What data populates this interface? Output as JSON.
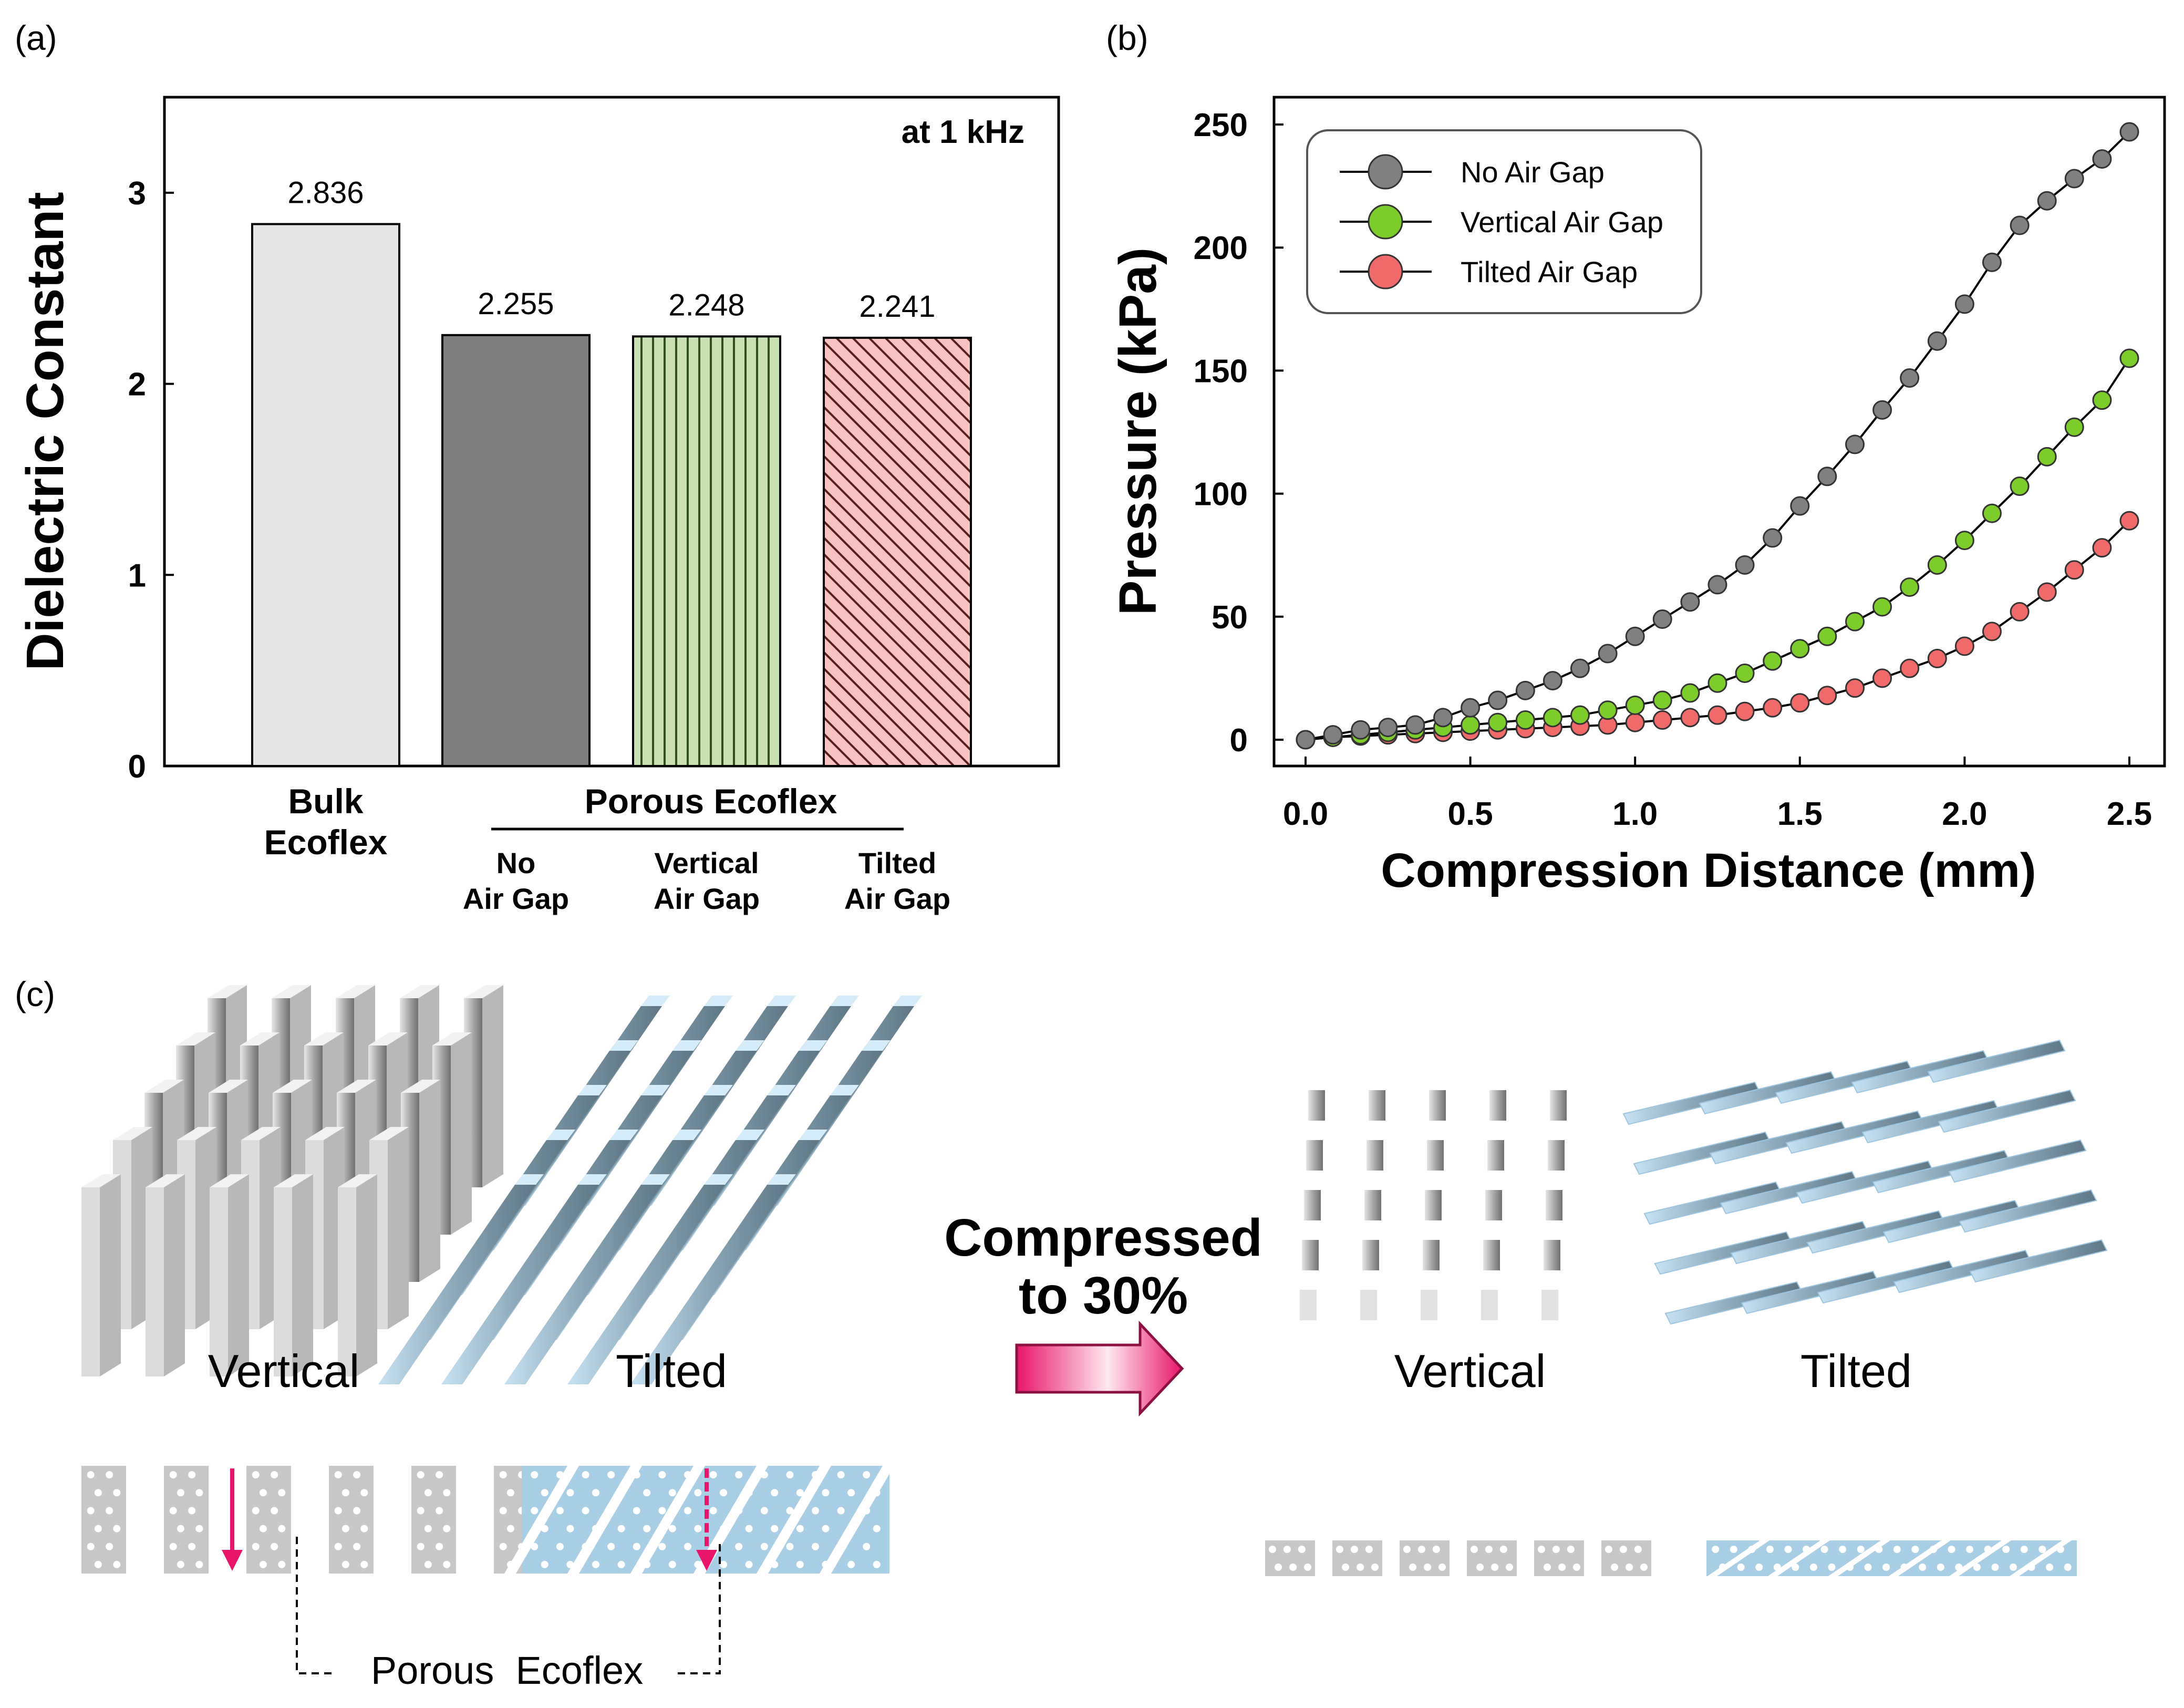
{
  "panels": {
    "a": "(a)",
    "b": "(b)",
    "c": "(c)"
  },
  "chart_data": [
    {
      "type": "bar",
      "ylabel": "Dielectric Constant",
      "annotation": "at 1 kHz",
      "ylim": [
        0,
        3.5
      ],
      "yticks": [
        0,
        1,
        2,
        3
      ],
      "categories": [
        "Bulk Ecoflex",
        "No Air Gap",
        "Vertical Air Gap",
        "Tilted Air Gap"
      ],
      "category_lines": [
        [
          "Bulk",
          "Ecoflex"
        ],
        [
          "No",
          "Air Gap"
        ],
        [
          "Vertical",
          "Air Gap"
        ],
        [
          "Tilted",
          "Air Gap"
        ]
      ],
      "group_label": "Porous Ecoflex",
      "values": [
        2.836,
        2.255,
        2.248,
        2.241
      ],
      "value_labels": [
        "2.836",
        "2.255",
        "2.248",
        "2.241"
      ],
      "colors": [
        "#e6e6e6",
        "#7f7f7f",
        "#c9e0b3",
        "#f6c2c2"
      ],
      "patterns": [
        "none",
        "none",
        "vertical",
        "diagonal"
      ]
    },
    {
      "type": "line",
      "xlabel": "Compression Distance (mm)",
      "ylabel": "Pressure (kPa)",
      "xlim": [
        0,
        2.5
      ],
      "ylim": [
        0,
        250
      ],
      "xticks": [
        "0.0",
        "0.5",
        "1.0",
        "1.5",
        "2.0",
        "2.5"
      ],
      "yticks": [
        "0",
        "50",
        "100",
        "150",
        "200",
        "250"
      ],
      "x": [
        0,
        0.083,
        0.167,
        0.25,
        0.333,
        0.417,
        0.5,
        0.583,
        0.667,
        0.75,
        0.833,
        0.917,
        1.0,
        1.083,
        1.167,
        1.25,
        1.333,
        1.417,
        1.5,
        1.583,
        1.667,
        1.75,
        1.833,
        1.917,
        2.0,
        2.083,
        2.167,
        2.25,
        2.333,
        2.417,
        2.5
      ],
      "series": [
        {
          "name": "No Air Gap",
          "color": "#808080",
          "values": [
            0,
            2,
            4,
            5,
            6,
            9,
            13,
            16,
            20,
            24,
            29,
            35,
            42,
            49,
            56,
            63,
            71,
            82,
            95,
            107,
            120,
            134,
            147,
            162,
            177,
            194,
            209,
            219,
            228,
            236,
            247
          ]
        },
        {
          "name": "Vertical Air Gap",
          "color": "#7ccc2c",
          "values": [
            0,
            1,
            2,
            3,
            4,
            5,
            6,
            7,
            8,
            9,
            10,
            12,
            14,
            16,
            19,
            23,
            27,
            32,
            37,
            42,
            48,
            54,
            62,
            71,
            81,
            92,
            103,
            115,
            127,
            138,
            155
          ]
        },
        {
          "name": "Tilted Air Gap",
          "color": "#f06a6a",
          "values": [
            0,
            1,
            1.5,
            2,
            2.5,
            3,
            3.5,
            4,
            4.5,
            5,
            5.5,
            6,
            7,
            8,
            9,
            10,
            11.5,
            13,
            15,
            18,
            21,
            25,
            29,
            33,
            38,
            44,
            52,
            60,
            69,
            78,
            89
          ]
        }
      ]
    }
  ],
  "panel_c": {
    "top_vertical": "Vertical",
    "top_tilted": "Tilted",
    "arrow_label_1": "Compressed",
    "arrow_label_2": "to 30%",
    "after_vertical": "Vertical",
    "after_tilted": "Tilted",
    "porous_label": "Porous  Ecoflex",
    "gray": "#c8c8c8",
    "blue": "#a9cfe6",
    "arrow_color": "#e8156a"
  }
}
